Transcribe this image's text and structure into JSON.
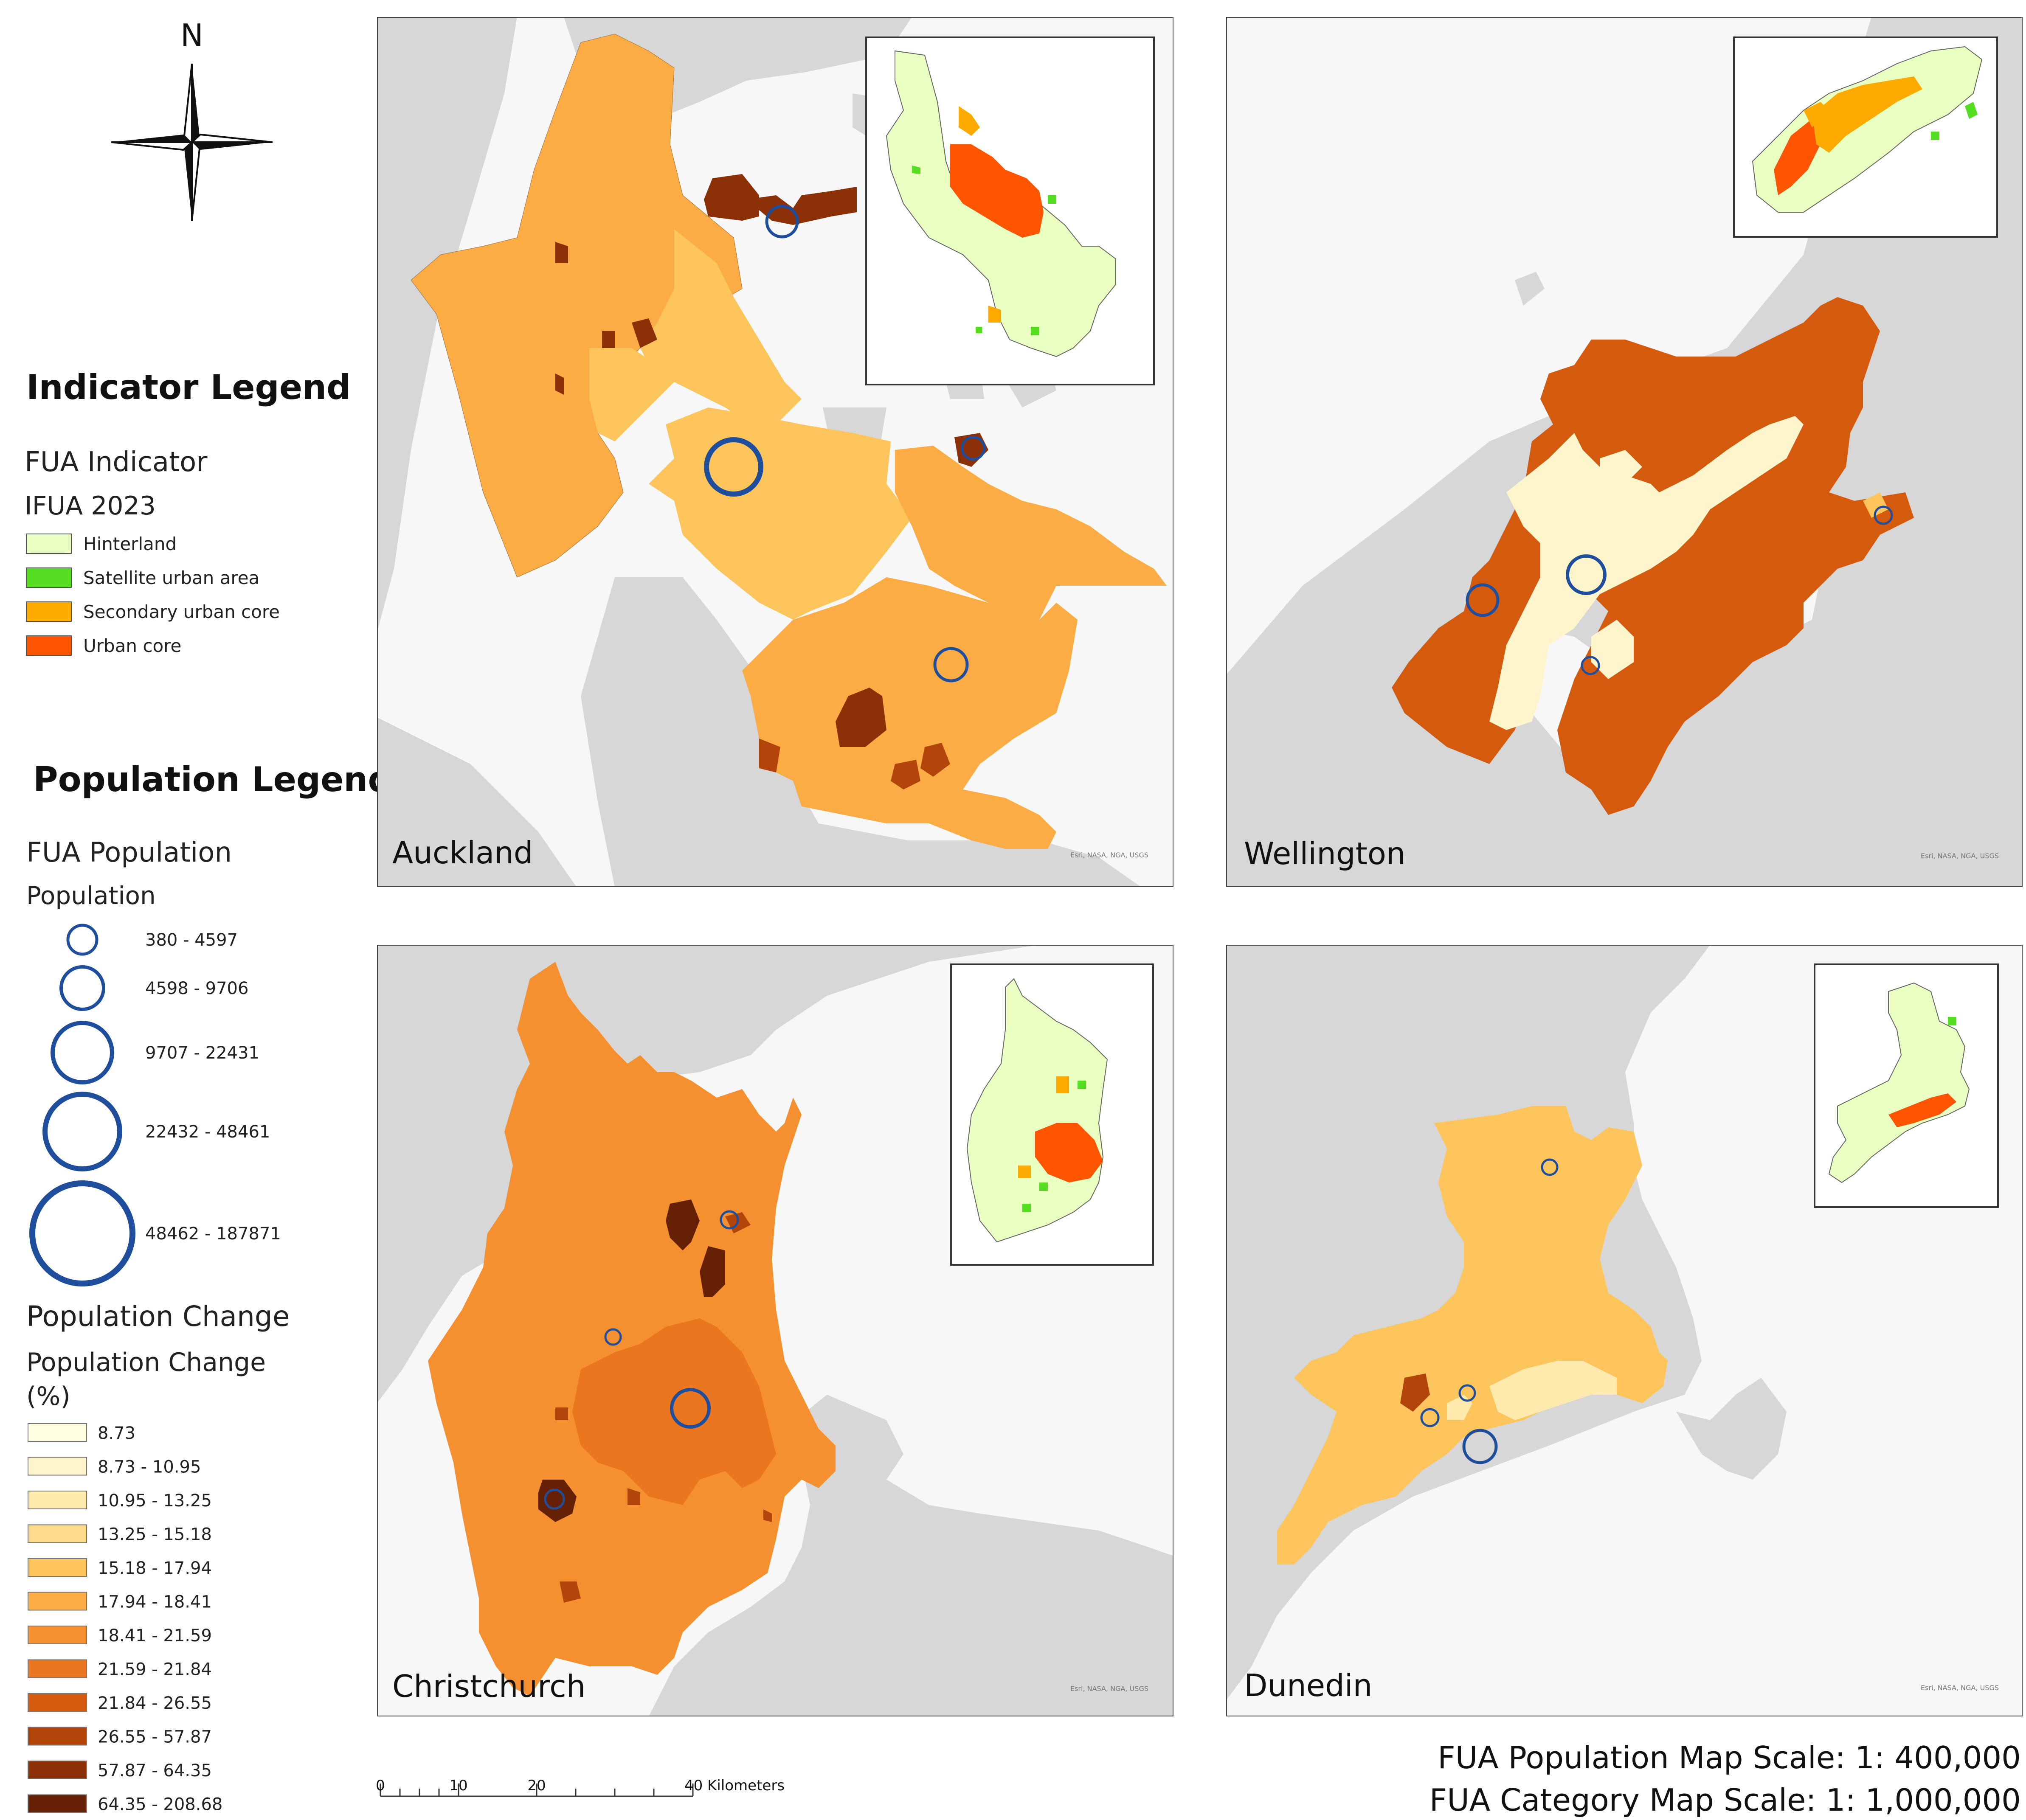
{
  "north_arrow": {
    "label": "N"
  },
  "indicator_legend": {
    "title": "Indicator Legend",
    "layer": "FUA Indicator",
    "field": "IFUA 2023",
    "items": [
      {
        "label": "Hinterland",
        "color": "#eaffc2"
      },
      {
        "label": "Satellite urban area",
        "color": "#55dd22"
      },
      {
        "label": "Secondary urban core",
        "color": "#ffaa00"
      },
      {
        "label": "Urban core",
        "color": "#ff5500"
      }
    ]
  },
  "population_legend": {
    "title": "Population Legend",
    "layer": "FUA Population",
    "field": "Population",
    "symbol_color": "#1f4e9c",
    "sizes": [
      {
        "label": "380 - 4597"
      },
      {
        "label": "4598 - 9706"
      },
      {
        "label": "9707 - 22431"
      },
      {
        "label": "22432 - 48461"
      },
      {
        "label": "48462 - 187871"
      }
    ]
  },
  "change_legend": {
    "layer": "Population Change",
    "field_line1": "Population Change",
    "field_line2": "(%)",
    "classes": [
      {
        "label": "8.73",
        "color": "#fffde2"
      },
      {
        "label": "8.73 - 10.95",
        "color": "#fff5cc"
      },
      {
        "label": "10.95 - 13.25",
        "color": "#ffe9ac"
      },
      {
        "label": "13.25 - 15.18",
        "color": "#fedb8a"
      },
      {
        "label": "15.18 - 17.94",
        "color": "#fdc55c"
      },
      {
        "label": "17.94 - 18.41",
        "color": "#fbac45"
      },
      {
        "label": "18.41 - 21.59",
        "color": "#f59030"
      },
      {
        "label": "21.59 - 21.84",
        "color": "#ea761f"
      },
      {
        "label": "21.84 - 26.55",
        "color": "#d45a0e"
      },
      {
        "label": "26.55 - 57.87",
        "color": "#b3440a"
      },
      {
        "label": "57.87 - 64.35",
        "color": "#8c3008"
      },
      {
        "label": "64.35 - 208.68",
        "color": "#662005"
      }
    ]
  },
  "maps": [
    {
      "name": "Auckland",
      "credit": "Esri, NASA, NGA, USGS"
    },
    {
      "name": "Wellington",
      "credit": "Esri, NASA, NGA, USGS"
    },
    {
      "name": "Christchurch",
      "credit": "Esri, NASA, NGA, USGS"
    },
    {
      "name": "Dunedin",
      "credit": "Esri, NASA, NGA, USGS"
    }
  ],
  "scale_bar": {
    "ticks": [
      "0",
      "10",
      "20"
    ],
    "end_label": "40 Kilometers"
  },
  "scale_notes": [
    "FUA Population Map Scale: 1: 400,000",
    "FUA Category Map Scale: 1: 1,000,000"
  ],
  "colors": {
    "sea": "#f7f7f7",
    "land": "#d7d7d7",
    "panel_border": "#444444",
    "circle": "#1f4e9c"
  }
}
